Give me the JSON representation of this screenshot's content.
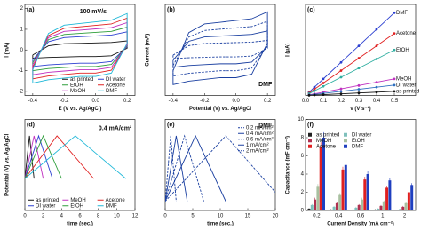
{
  "chart_data": [
    {
      "type": "line",
      "label": "(a)",
      "annotation": "100 mV/s",
      "xlabel": "E (V vs. Ag/AgCl)",
      "ylabel": "I (mA)",
      "xlim": [
        -0.45,
        0.25
      ],
      "ylim": [
        -2.2,
        2.2
      ],
      "xticks": [
        -0.4,
        -0.2,
        {
          "value": 0,
          "label": "0.0"
        },
        0.2
      ],
      "yticks": [
        -2,
        -1,
        0,
        1,
        2
      ],
      "legend": "lower right",
      "legend_columns": 2,
      "x": [
        -0.4,
        -0.3,
        -0.2,
        -0.1,
        0,
        0.1,
        0.2,
        0.2,
        0.1,
        0,
        -0.1,
        -0.2,
        -0.3,
        -0.4,
        -0.4
      ],
      "series": [
        {
          "name": "as printed",
          "color": "#111111",
          "values": [
            -0.24,
            0.2,
            0.3,
            0.32,
            0.34,
            0.36,
            0.44,
            0.08,
            -0.28,
            -0.32,
            -0.32,
            -0.34,
            -0.36,
            -0.4,
            -0.24
          ]
        },
        {
          "name": "DI water",
          "color": "#2b3fd0",
          "values": [
            -0.48,
            0.4,
            0.6,
            0.64,
            0.68,
            0.72,
            0.88,
            0.16,
            -0.56,
            -0.64,
            -0.64,
            -0.68,
            -0.72,
            -0.8,
            -0.48
          ]
        },
        {
          "name": "EtOH",
          "color": "#2e9e3a",
          "values": [
            -0.6,
            0.5,
            0.75,
            0.8,
            0.85,
            0.9,
            1.1,
            0.2,
            -0.7,
            -0.8,
            -0.8,
            -0.85,
            -0.9,
            -1.0,
            -0.6
          ]
        },
        {
          "name": "Acetone",
          "color": "#e02020",
          "values": [
            -0.84,
            0.7,
            1.05,
            1.12,
            1.19,
            1.26,
            1.54,
            0.28,
            -0.98,
            -1.12,
            -1.12,
            -1.19,
            -1.26,
            -1.4,
            -0.84
          ]
        },
        {
          "name": "MeOH",
          "color": "#c030c0",
          "values": [
            -0.72,
            0.6,
            0.9,
            0.96,
            1.02,
            1.08,
            1.32,
            0.24,
            -0.84,
            -0.96,
            -0.96,
            -1.02,
            -1.08,
            -1.2,
            -0.72
          ]
        },
        {
          "name": "DMF",
          "color": "#20b8d8",
          "values": [
            -0.96,
            0.8,
            1.2,
            1.28,
            1.36,
            1.44,
            1.76,
            0.32,
            -1.12,
            -1.28,
            -1.28,
            -1.36,
            -1.44,
            -1.6,
            -0.96
          ]
        }
      ]
    },
    {
      "type": "line",
      "label": "(b)",
      "annotation": "DMF",
      "xlabel": "Potential (V) vs. Ag/AgCl",
      "ylabel": "Current (mA)",
      "xlim": [
        -0.45,
        0.25
      ],
      "ylim": [
        -2.1,
        2.1
      ],
      "xticks": [
        -0.4,
        -0.2,
        {
          "value": 0,
          "label": "0.0"
        },
        0.2
      ],
      "x": [
        -0.4,
        -0.3,
        -0.2,
        -0.1,
        0,
        0.1,
        0.2,
        0.2,
        0.1,
        0,
        -0.1,
        -0.2,
        -0.3,
        -0.4,
        -0.4
      ],
      "series": [
        {
          "color": "#1a3fa0",
          "dash": true,
          "values": [
            -0.24,
            0.2,
            0.3,
            0.32,
            0.34,
            0.36,
            0.44,
            0.08,
            -0.28,
            -0.32,
            -0.32,
            -0.34,
            -0.36,
            -0.4,
            -0.24
          ]
        },
        {
          "color": "#1a3fa0",
          "values": [
            -0.48,
            0.4,
            0.6,
            0.64,
            0.68,
            0.72,
            0.88,
            0.16,
            -0.56,
            -0.64,
            -0.64,
            -0.68,
            -0.72,
            -0.8,
            -0.48
          ]
        },
        {
          "color": "#1a3fa0",
          "dash": true,
          "values": [
            -0.72,
            0.6,
            0.9,
            0.96,
            1.02,
            1.08,
            1.32,
            0.24,
            -0.84,
            -0.96,
            -0.96,
            -1.02,
            -1.08,
            -1.2,
            -0.72
          ]
        },
        {
          "color": "#1a3fa0",
          "values": [
            -0.96,
            0.8,
            1.2,
            1.28,
            1.36,
            1.44,
            1.76,
            0.32,
            -1.12,
            -1.28,
            -1.28,
            -1.36,
            -1.44,
            -1.6,
            -0.96
          ]
        }
      ]
    },
    {
      "type": "line",
      "label": "(c)",
      "markers": true,
      "xlabel": "ν (V s⁻¹)",
      "ylabel": "I (μA)",
      "xlim": [
        0,
        0.62
      ],
      "ylim": [
        0,
        110
      ],
      "xticks": [
        {
          "value": 0,
          "label": "0.0"
        },
        0.1,
        0.2,
        0.3,
        0.4,
        0.5
      ],
      "legend": "line end",
      "x": [
        0.02,
        0.05,
        0.1,
        0.2,
        0.3,
        0.4,
        0.5
      ],
      "series": [
        {
          "name": "DMF",
          "color": "#2b3fd0",
          "values": [
            4,
            10,
            20,
            40,
            60,
            80,
            100
          ]
        },
        {
          "name": "Acetone",
          "color": "#e02020",
          "values": [
            3,
            7.5,
            15,
            30,
            45,
            60,
            75
          ]
        },
        {
          "name": "EtOH",
          "color": "#2eaea0",
          "values": [
            2.2,
            5.5,
            11,
            22,
            33,
            44,
            55
          ]
        },
        {
          "name": "MeOH",
          "color": "#c030c0",
          "values": [
            0.8,
            2,
            4,
            8,
            12,
            16,
            20
          ]
        },
        {
          "name": "DI water",
          "color": "#3070c0",
          "values": [
            0.5,
            1.25,
            2.5,
            5,
            7.5,
            10,
            12.5
          ]
        },
        {
          "name": "as printed",
          "color": "#111111",
          "values": [
            0.2,
            0.5,
            1,
            2,
            3,
            4,
            5
          ]
        }
      ]
    },
    {
      "type": "line",
      "label": "(d)",
      "annotation": "0.4 mA/cm²",
      "xlabel": "time (sec.)",
      "ylabel": "Potential (V) vs. Ag/AgCl",
      "xlim": [
        0,
        12
      ],
      "ylim": [
        0,
        1
      ],
      "xticks": [
        0,
        2,
        4,
        6,
        8,
        10,
        12
      ],
      "legend": "lower left",
      "legend_columns": 3,
      "series": [
        {
          "name": "as printed",
          "color": "#111111",
          "x": [
            0,
            0.5,
            1
          ],
          "values": [
            0.35,
            0.82,
            0.35
          ]
        },
        {
          "name": "MeOH",
          "color": "#c030c0",
          "x": [
            0,
            1,
            2
          ],
          "values": [
            0.35,
            0.82,
            0.35
          ]
        },
        {
          "name": "Acetone",
          "color": "#e02020",
          "x": [
            0,
            3.5,
            7.5
          ],
          "values": [
            0.35,
            0.82,
            0.35
          ]
        },
        {
          "name": "DI water",
          "color": "#2b3fd0",
          "x": [
            0,
            1.5,
            3
          ],
          "values": [
            0.35,
            0.82,
            0.35
          ]
        },
        {
          "name": "EtOH",
          "color": "#2e9e3a",
          "x": [
            0,
            2,
            4
          ],
          "values": [
            0.35,
            0.82,
            0.35
          ]
        },
        {
          "name": "DMF",
          "color": "#20b8d8",
          "x": [
            0,
            5.5,
            11
          ],
          "values": [
            0.35,
            0.82,
            0.35
          ]
        }
      ]
    },
    {
      "type": "line",
      "label": "(e)",
      "annotation": "DMF",
      "xlabel": "time (sec.)",
      "xlim": [
        0,
        20
      ],
      "ylim": [
        0,
        1
      ],
      "xticks": [
        0,
        5,
        10,
        15,
        20
      ],
      "legend": "right",
      "legend_columns": 1,
      "series": [
        {
          "name": "0.2 mA/cm²",
          "color": "#1a3fa0",
          "dash": true,
          "x": [
            0,
            11,
            20
          ],
          "values": [
            0.1,
            0.82,
            0.2
          ]
        },
        {
          "name": "0.4 mA/cm²",
          "color": "#1a3fa0",
          "x": [
            0,
            5.5,
            11
          ],
          "values": [
            0.1,
            0.82,
            0.1
          ]
        },
        {
          "name": "0.6 mA/cm²",
          "color": "#1a3fa0",
          "dash": true,
          "x": [
            0,
            3.5,
            7
          ],
          "values": [
            0.1,
            0.82,
            0.1
          ]
        },
        {
          "name": "1 mA/cm²",
          "color": "#1a3fa0",
          "x": [
            0,
            2,
            4
          ],
          "values": [
            0.1,
            0.82,
            0.1
          ]
        },
        {
          "name": "2 mA/cm²",
          "color": "#1a3fa0",
          "dash": true,
          "x": [
            0,
            1,
            2
          ],
          "values": [
            0.1,
            0.82,
            0.1
          ]
        }
      ]
    },
    {
      "type": "bar",
      "label": "(f)",
      "xlabel": "Current Density (mA cm⁻²)",
      "ylabel": "Capacitance (mF cm⁻²)",
      "categories": [
        "0.2",
        "0.4",
        "0.6",
        "1",
        "2"
      ],
      "ylim": [
        0,
        10
      ],
      "yticks": [
        0,
        2,
        4,
        6,
        8,
        10
      ],
      "legend": "upper left",
      "legend_columns": 2,
      "series": [
        {
          "name": "as printed",
          "color": "#222222",
          "values": [
            0.2,
            0.1,
            0.1,
            0.1,
            0.05
          ],
          "errors": [
            0.05,
            0.05,
            0.05,
            0.05,
            0.03
          ]
        },
        {
          "name": "DI water",
          "color": "#7fc0bc",
          "values": [
            0.6,
            0.4,
            0.3,
            0.2,
            0.15
          ],
          "errors": [
            0.1,
            0.1,
            0.1,
            0.05,
            0.05
          ]
        },
        {
          "name": "MeOH",
          "color": "#b03050",
          "values": [
            1.2,
            0.8,
            0.6,
            0.5,
            0.4
          ],
          "errors": [
            0.2,
            0.1,
            0.1,
            0.1,
            0.1
          ]
        },
        {
          "name": "EtOH",
          "color": "#a8c0a0",
          "values": [
            2.6,
            1.7,
            1.2,
            1.0,
            0.8
          ],
          "errors": [
            0.3,
            0.2,
            0.2,
            0.1,
            0.1
          ]
        },
        {
          "name": "Acetone",
          "color": "#e02020",
          "values": [
            7.0,
            4.5,
            3.4,
            2.5,
            2.0
          ],
          "errors": [
            0.5,
            0.3,
            0.3,
            0.2,
            0.2
          ]
        },
        {
          "name": "DMF",
          "color": "#1f3fbf",
          "values": [
            8.0,
            5.0,
            4.0,
            3.3,
            2.8
          ],
          "errors": [
            0.6,
            0.4,
            0.3,
            0.3,
            0.2
          ]
        }
      ]
    }
  ]
}
